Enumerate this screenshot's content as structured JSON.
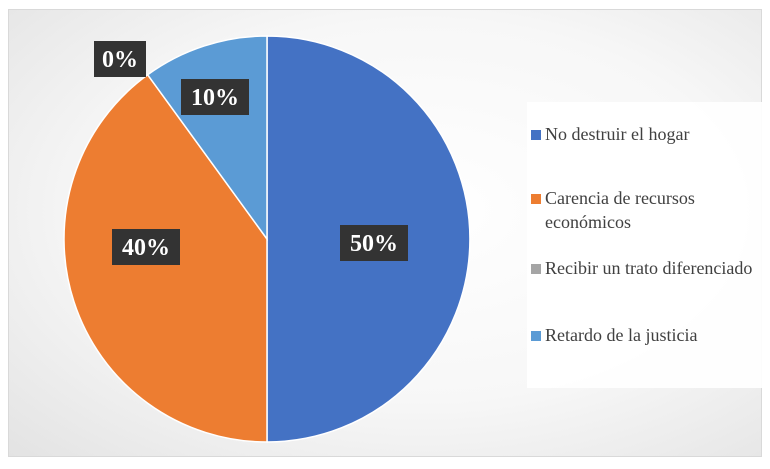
{
  "chart_data": {
    "type": "pie",
    "title": "",
    "categories": [
      "No destruir el hogar",
      "Carencia de recursos económicos",
      "Recibir un trato diferenciado",
      "Retardo de la justicia"
    ],
    "values": [
      50,
      40,
      0,
      10
    ],
    "data_labels": [
      "50%",
      "40%",
      "0%",
      "10%"
    ],
    "colors": [
      "#4472c4",
      "#ed7d31",
      "#a5a5a5",
      "#5b9bd5"
    ],
    "legend_position": "right",
    "start_angle_deg": 0,
    "direction": "clockwise"
  }
}
